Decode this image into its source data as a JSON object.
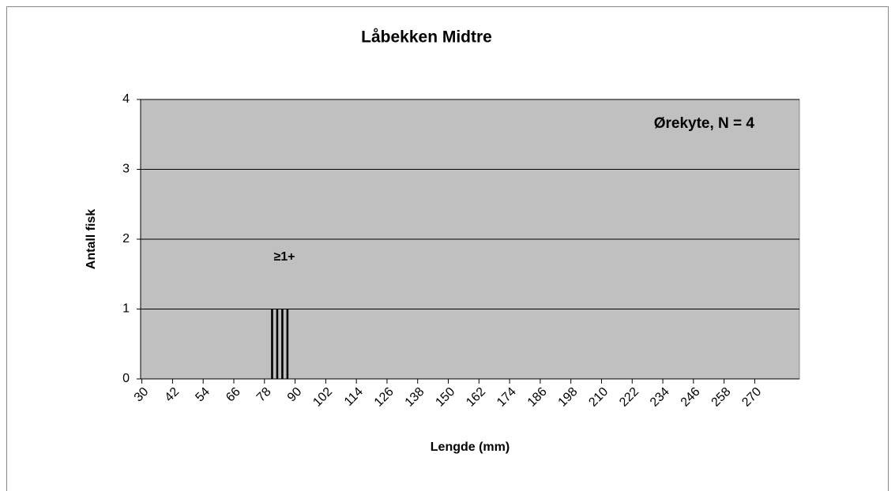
{
  "chart_data": {
    "type": "bar",
    "title": "Låbekken Midtre",
    "x_label": "Lengde (mm)",
    "y_label": "Antall fisk",
    "annotations": [
      "Ørekyte, N = 4",
      "≥1+"
    ],
    "x": [
      81,
      83,
      85,
      87
    ],
    "values": [
      1,
      1,
      1,
      1
    ],
    "color": "#000000",
    "xlim": [
      29.5,
      287.5
    ],
    "xticks": [
      30,
      42,
      54,
      66,
      78,
      90,
      102,
      114,
      126,
      138,
      150,
      162,
      174,
      186,
      198,
      210,
      222,
      234,
      246,
      258,
      270
    ],
    "ylim": [
      0,
      4
    ],
    "yticks": [
      0,
      1,
      2,
      3,
      4
    ],
    "grid": true,
    "background": "#c0c0c0"
  }
}
